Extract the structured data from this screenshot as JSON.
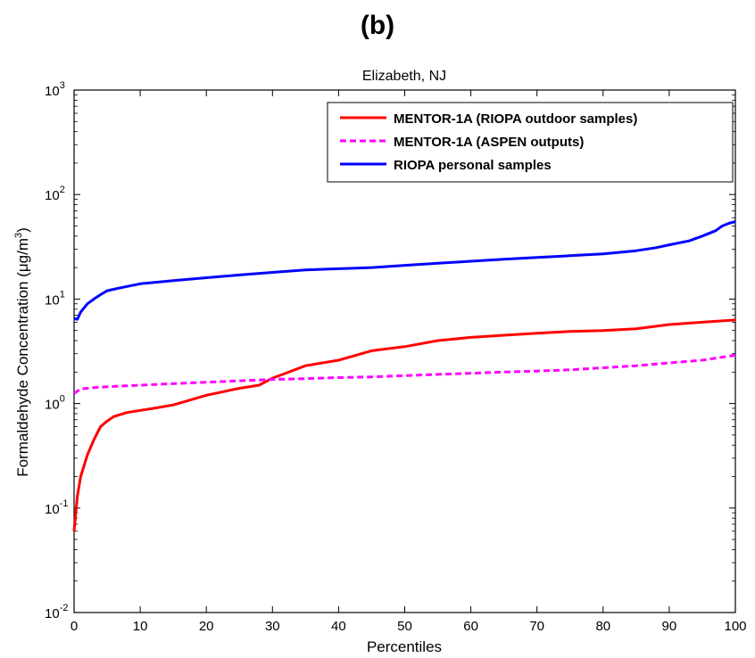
{
  "panel_label": "(b)",
  "chart_data": {
    "type": "line",
    "title": "Elizabeth, NJ",
    "xlabel": "Percentiles",
    "ylabel": "Formaldehyde Concentration (μg/m3)",
    "ylabel_unit_base": "Formaldehyde Concentration (μg/m",
    "ylabel_unit_sup": "3",
    "ylabel_unit_close": ")",
    "xlim": [
      0,
      100
    ],
    "ylim": [
      0.01,
      1000
    ],
    "yscale": "log",
    "xticks": [
      0,
      10,
      20,
      30,
      40,
      50,
      60,
      70,
      80,
      90,
      100
    ],
    "yticks": [
      {
        "value": 0.01,
        "base": "10",
        "exp": "-2"
      },
      {
        "value": 0.1,
        "base": "10",
        "exp": "-1"
      },
      {
        "value": 1,
        "base": "10",
        "exp": "0"
      },
      {
        "value": 10,
        "base": "10",
        "exp": "1"
      },
      {
        "value": 100,
        "base": "10",
        "exp": "2"
      },
      {
        "value": 1000,
        "base": "10",
        "exp": "3"
      }
    ],
    "grid": false,
    "legend_position": "top-right",
    "series": [
      {
        "name": "MENTOR-1A (RIOPA outdoor samples)",
        "color": "#ff0000",
        "style": "solid",
        "x": [
          0,
          0.5,
          1,
          2,
          3,
          4,
          5,
          6,
          8,
          10,
          12,
          15,
          18,
          20,
          25,
          28,
          30,
          32,
          35,
          40,
          45,
          50,
          55,
          60,
          65,
          70,
          75,
          80,
          85,
          90,
          95,
          100
        ],
        "y": [
          0.06,
          0.13,
          0.2,
          0.32,
          0.45,
          0.6,
          0.68,
          0.75,
          0.82,
          0.86,
          0.9,
          0.97,
          1.1,
          1.2,
          1.4,
          1.5,
          1.75,
          1.95,
          2.3,
          2.6,
          3.2,
          3.5,
          4.0,
          4.3,
          4.5,
          4.7,
          4.9,
          5.0,
          5.2,
          5.7,
          6.0,
          6.3
        ]
      },
      {
        "name": "MENTOR-1A (ASPEN outputs)",
        "color": "#ff00ff",
        "style": "dashed",
        "x": [
          0,
          1,
          3,
          5,
          10,
          15,
          20,
          25,
          30,
          35,
          40,
          45,
          50,
          55,
          60,
          65,
          70,
          75,
          80,
          85,
          90,
          95,
          100
        ],
        "y": [
          1.25,
          1.38,
          1.42,
          1.45,
          1.5,
          1.55,
          1.6,
          1.65,
          1.7,
          1.73,
          1.77,
          1.8,
          1.85,
          1.9,
          1.95,
          2.0,
          2.05,
          2.1,
          2.2,
          2.3,
          2.45,
          2.6,
          2.9
        ]
      },
      {
        "name": "RIOPA personal samples",
        "color": "#0000ff",
        "style": "solid",
        "x": [
          0,
          0.5,
          1,
          2,
          3,
          4,
          5,
          7,
          10,
          15,
          20,
          25,
          30,
          35,
          40,
          45,
          50,
          55,
          60,
          65,
          70,
          75,
          80,
          85,
          88,
          90,
          93,
          95,
          97,
          98,
          99,
          100
        ],
        "y": [
          6.5,
          6.4,
          7.5,
          9.0,
          10.0,
          11.0,
          12.0,
          12.8,
          14.0,
          15.0,
          16.0,
          17.0,
          18.0,
          19.0,
          19.5,
          20.0,
          21.0,
          22.0,
          23.0,
          24.0,
          25.0,
          26.0,
          27.0,
          29.0,
          31.0,
          33.0,
          36.0,
          40.0,
          45.0,
          50.0,
          53.0,
          55.0
        ]
      }
    ]
  }
}
